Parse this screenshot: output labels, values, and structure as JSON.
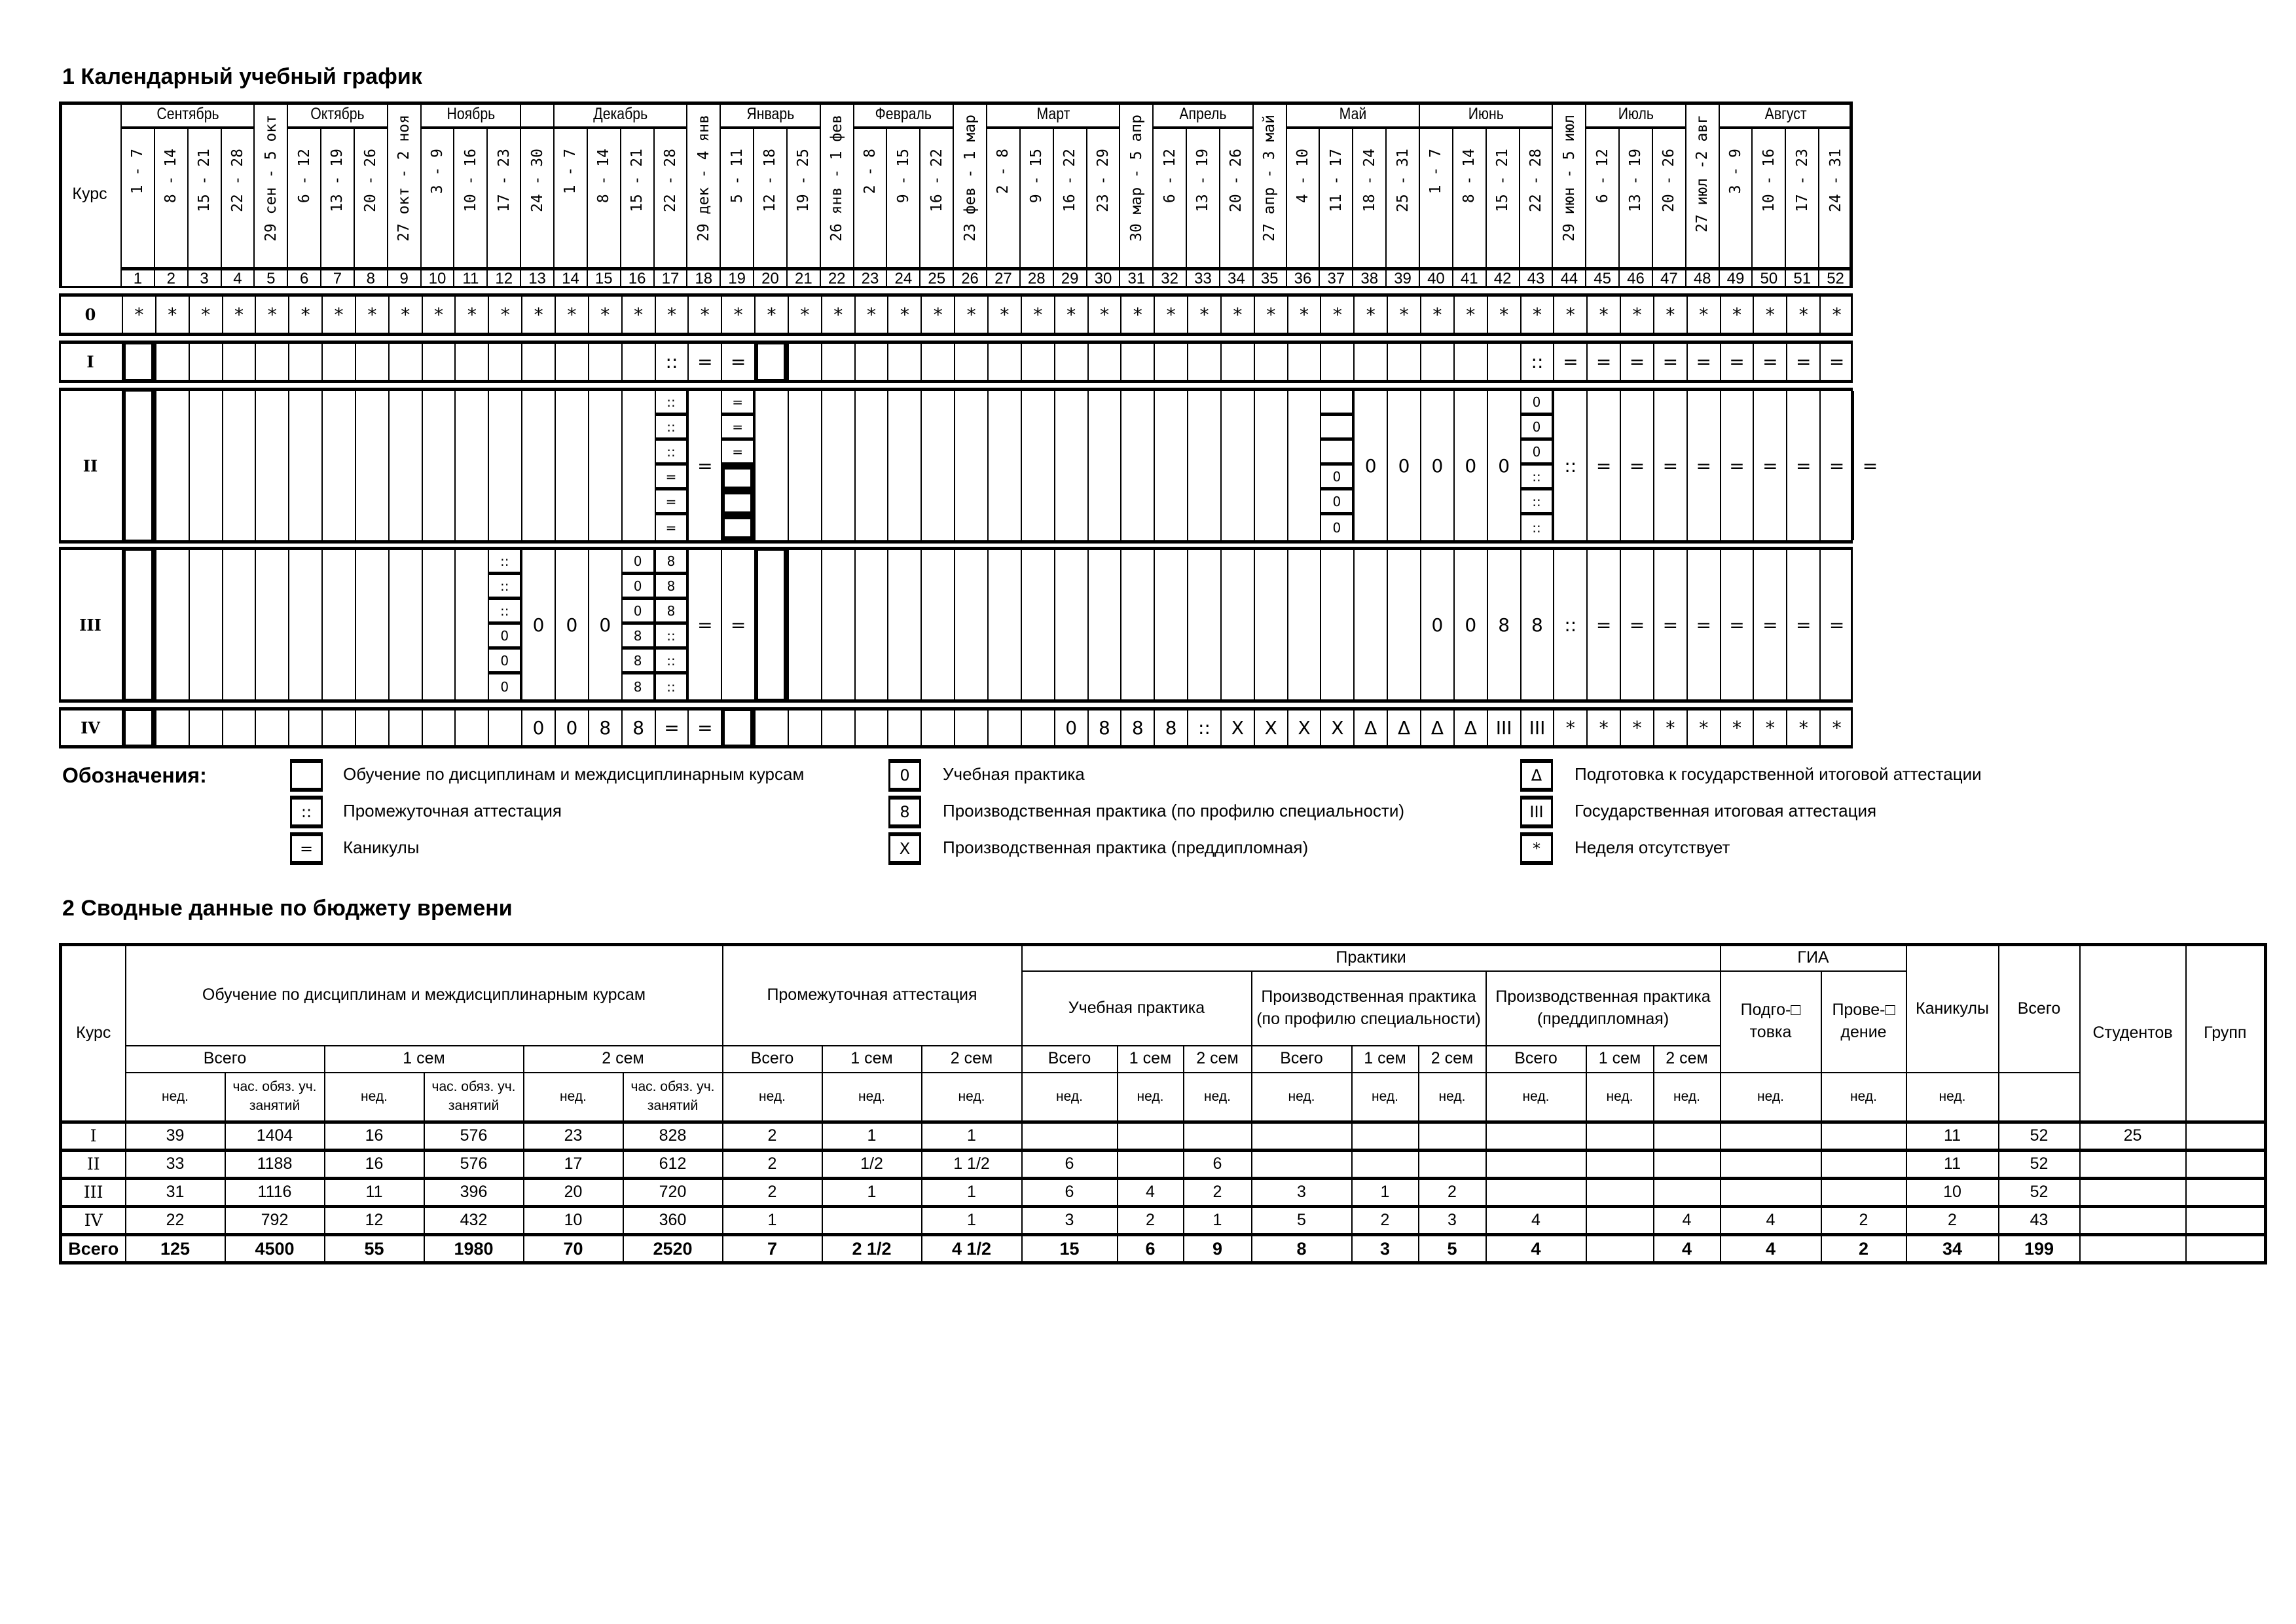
{
  "section1_title": "1 Календарный учебный график",
  "section2_title": "2 Сводные данные по бюджету времени",
  "schedule": {
    "course_header": "Курс",
    "months": [
      {
        "label": "Сентябрь",
        "from": 1,
        "to": 4
      },
      {
        "label": "Октябрь",
        "from": 6,
        "to": 8
      },
      {
        "label": "Ноябрь",
        "from": 10,
        "to": 12
      },
      {
        "label": "",
        "from": 13,
        "to": 13
      },
      {
        "label": "Декабрь",
        "from": 14,
        "to": 17
      },
      {
        "label": "Январь",
        "from": 19,
        "to": 21
      },
      {
        "label": "Февраль",
        "from": 23,
        "to": 25
      },
      {
        "label": "Март",
        "from": 27,
        "to": 30
      },
      {
        "label": "Апрель",
        "from": 32,
        "to": 34
      },
      {
        "label": "Май",
        "from": 36,
        "to": 39
      },
      {
        "label": "Июнь",
        "from": 40,
        "to": 43
      },
      {
        "label": "Июль",
        "from": 45,
        "to": 47
      },
      {
        "label": "Август",
        "from": 49,
        "to": 52
      }
    ],
    "weeks": [
      "1 - 7",
      "8 - 14",
      "15 - 21",
      "22 - 28",
      "29 сен - 5 окт",
      "6 - 12",
      "13 - 19",
      "20 - 26",
      "27 окт - 2 ноя",
      "3 - 9",
      "10 - 16",
      "17 - 23",
      "24 - 30",
      "1 - 7",
      "8 - 14",
      "15 - 21",
      "22 - 28",
      "29 дек - 4 янв",
      "5 - 11",
      "12 - 18",
      "19 - 25",
      "26 янв - 1 фев",
      "2 - 8",
      "9 - 15",
      "16 - 22",
      "23 фев - 1 мар",
      "2 - 8",
      "9 - 15",
      "16 - 22",
      "23 - 29",
      "30 мар - 5 апр",
      "6 - 12",
      "13 - 19",
      "20 - 26",
      "27 апр - 3 май",
      "4 - 10",
      "11 - 17",
      "18 - 24",
      "25 - 31",
      "1 - 7",
      "8 - 14",
      "15 - 21",
      "22 - 28",
      "29 июн - 5 июл",
      "6 - 12",
      "13 - 19",
      "20 - 26",
      "27 июл -2 авг",
      "3 - 9",
      "10 - 16",
      "17 - 23",
      "24 - 31"
    ],
    "week_numbers": [
      "1",
      "2",
      "3",
      "4",
      "5",
      "6",
      "7",
      "8",
      "9",
      "10",
      "11",
      "12",
      "13",
      "14",
      "15",
      "16",
      "17",
      "18",
      "19",
      "20",
      "21",
      "22",
      "23",
      "24",
      "25",
      "26",
      "27",
      "28",
      "29",
      "30",
      "31",
      "32",
      "33",
      "34",
      "35",
      "36",
      "37",
      "38",
      "39",
      "40",
      "41",
      "42",
      "43",
      "44",
      "45",
      "46",
      "47",
      "48",
      "49",
      "50",
      "51",
      "52"
    ],
    "rows": [
      {
        "course": "0",
        "bold_weeks": [],
        "cells": [
          "*",
          "*",
          "*",
          "*",
          "*",
          "*",
          "*",
          "*",
          "*",
          "*",
          "*",
          "*",
          "*",
          "*",
          "*",
          "*",
          "*",
          "*",
          "*",
          "*",
          "*",
          "*",
          "*",
          "*",
          "*",
          "*",
          "*",
          "*",
          "*",
          "*",
          "*",
          "*",
          "*",
          "*",
          "*",
          "*",
          "*",
          "*",
          "*",
          "*",
          "*",
          "*",
          "*",
          "*",
          "*",
          "*",
          "*",
          "*",
          "*",
          "*",
          "*",
          "*"
        ]
      },
      {
        "course": "I",
        "bold_weeks": [
          1,
          20
        ],
        "cells": [
          "",
          "",
          "",
          "",
          "",
          "",
          "",
          "",
          "",
          "",
          "",
          "",
          "",
          "",
          "",
          "",
          "::",
          "=",
          "=",
          "",
          "",
          "",
          "",
          "",
          "",
          "",
          "",
          "",
          "",
          "",
          "",
          "",
          "",
          "",
          "",
          "",
          "",
          "",
          "",
          "",
          "",
          "",
          "::",
          "=",
          "=",
          "=",
          "=",
          "=",
          "=",
          "=",
          "=",
          "="
        ]
      },
      {
        "course": "II",
        "bold_weeks": [
          1,
          19
        ],
        "cells": [
          "",
          "",
          "",
          "",
          "",
          "",
          "",
          "",
          "",
          "",
          "",
          "",
          "",
          "",
          "",
          "",
          [
            "::",
            "::",
            "::",
            "=",
            "=",
            "="
          ],
          "=",
          [
            "=",
            "=",
            "=",
            "",
            "",
            ""
          ],
          "",
          "",
          "",
          "",
          "",
          "",
          "",
          "",
          "",
          "",
          "",
          "",
          "",
          "",
          "",
          "",
          "",
          [
            "",
            "",
            "",
            "0",
            "0",
            "0"
          ],
          "0",
          "0",
          "0",
          "0",
          "0",
          [
            "0",
            "0",
            "0",
            "::",
            "::",
            "::"
          ],
          "::",
          "=",
          "=",
          "=",
          "=",
          "=",
          "=",
          "=",
          "=",
          "="
        ]
      },
      {
        "course": "III",
        "bold_weeks": [
          1,
          20
        ],
        "cells": [
          "",
          "",
          "",
          "",
          "",
          "",
          "",
          "",
          "",
          "",
          "",
          [
            "::",
            "::",
            "::",
            "0",
            "0",
            "0"
          ],
          "0",
          "0",
          "0",
          [
            "0",
            "0",
            "0",
            "8",
            "8",
            "8"
          ],
          [
            "8",
            "8",
            "8",
            "::",
            "::",
            "::"
          ],
          "=",
          "=",
          "",
          "",
          "",
          "",
          "",
          "",
          "",
          "",
          "",
          "",
          "",
          "",
          "",
          "",
          "",
          "",
          "",
          "",
          "",
          "",
          "0",
          "0",
          "8",
          "8",
          "::",
          "=",
          "=",
          "=",
          "=",
          "=",
          "=",
          "=",
          "="
        ]
      },
      {
        "course": "IV",
        "bold_weeks": [
          1,
          19
        ],
        "cells": [
          "",
          "",
          "",
          "",
          "",
          "",
          "",
          "",
          "",
          "",
          "",
          "",
          "0",
          "0",
          "8",
          "8",
          "=",
          "=",
          "",
          "",
          "",
          "",
          "",
          "",
          "",
          "",
          "",
          "",
          "0",
          "8",
          "8",
          "8",
          "::",
          "X",
          "X",
          "X",
          "X",
          "Δ",
          "Δ",
          "Δ",
          "Δ",
          "III",
          "III",
          "*",
          "*",
          "*",
          "*",
          "*",
          "*",
          "*",
          "*",
          "*"
        ]
      }
    ]
  },
  "legend": {
    "title": "Обозначения:",
    "items": [
      {
        "symbol": "",
        "label": "Обучение по дисциплинам и междисциплинарным курсам"
      },
      {
        "symbol": "::",
        "label": "Промежуточная аттестация"
      },
      {
        "symbol": "=",
        "label": "Каникулы"
      },
      {
        "symbol": "0",
        "label": "Учебная практика"
      },
      {
        "symbol": "8",
        "label": "Производственная практика (по профилю специальности)"
      },
      {
        "symbol": "X",
        "label": "Производственная практика (преддипломная)"
      },
      {
        "symbol": "Δ",
        "label": "Подготовка к государственной итоговой аттестации"
      },
      {
        "symbol": "III",
        "label": "Государственная итоговая аттестация"
      },
      {
        "symbol": "*",
        "label": "Неделя отсутствует"
      }
    ]
  },
  "budget": {
    "h_course": "Курс",
    "h_study": "Обучение по дисциплинам и междисциплинарным курсам",
    "h_interim": "Промежуточная аттестация",
    "h_practices": "Практики",
    "h_gia": "ГИА",
    "h_holidays": "Каникулы",
    "h_total": "Всего",
    "h_students": "Студентов",
    "h_groups": "Групп",
    "h_edu_practice": "Учебная практика",
    "h_prod_practice": "Производственная практика (по профилю специальности)",
    "h_prediploma": "Производственная практика (преддипломная)",
    "h_prep": "Подго-□ товка",
    "h_conduct": "Прове-□ дение",
    "h_all": "Всего",
    "h_sem1": "1 сем",
    "h_sem2": "2 сем",
    "h_weeks": "нед.",
    "h_hours": "час. обяз. уч. занятий",
    "rows": [
      [
        "I",
        "39",
        "1404",
        "16",
        "576",
        "23",
        "828",
        "2",
        "1",
        "1",
        "",
        "",
        "",
        "",
        "",
        "",
        "",
        "",
        "",
        "",
        "",
        "11",
        "52",
        "25",
        ""
      ],
      [
        "II",
        "33",
        "1188",
        "16",
        "576",
        "17",
        "612",
        "2",
        "1/2",
        "1 1/2",
        "6",
        "",
        "6",
        "",
        "",
        "",
        "",
        "",
        "",
        "",
        "",
        "11",
        "52",
        "",
        ""
      ],
      [
        "III",
        "31",
        "1116",
        "11",
        "396",
        "20",
        "720",
        "2",
        "1",
        "1",
        "6",
        "4",
        "2",
        "3",
        "1",
        "2",
        "",
        "",
        "",
        "",
        "",
        "10",
        "52",
        "",
        ""
      ],
      [
        "IV",
        "22",
        "792",
        "12",
        "432",
        "10",
        "360",
        "1",
        "",
        "1",
        "3",
        "2",
        "1",
        "5",
        "2",
        "3",
        "4",
        "",
        "4",
        "4",
        "2",
        "2",
        "43",
        "",
        ""
      ],
      [
        "Всего",
        "125",
        "4500",
        "55",
        "1980",
        "70",
        "2520",
        "7",
        "2 1/2",
        "4 1/2",
        "15",
        "6",
        "9",
        "8",
        "3",
        "5",
        "4",
        "",
        "4",
        "4",
        "2",
        "34",
        "199",
        "",
        ""
      ]
    ]
  }
}
